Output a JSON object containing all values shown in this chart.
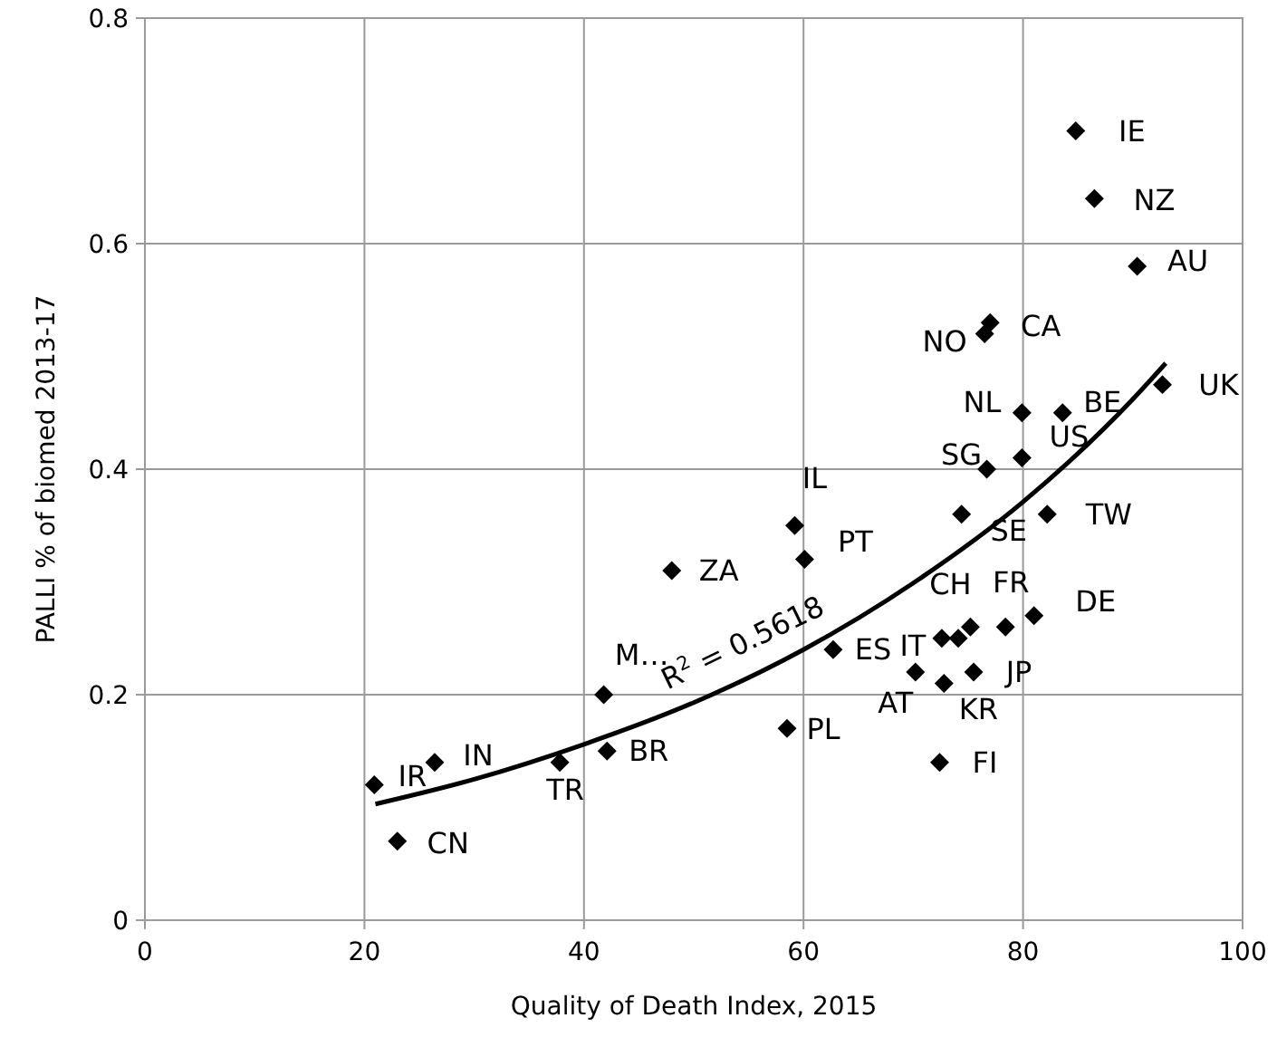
{
  "chart_data": {
    "type": "scatter",
    "xlabel": "Quality of Death Index, 2015",
    "ylabel": "PALLI % of biomed 2013-17",
    "xlim": [
      0,
      100
    ],
    "xticks": [
      0,
      20,
      40,
      60,
      80,
      100
    ],
    "ylim": [
      0,
      0.8
    ],
    "yticks": [
      0,
      0.2,
      0.4,
      0.6,
      0.8
    ],
    "grid": true,
    "marker": "diamond",
    "series": [
      {
        "color": "#000000",
        "x": [
          84.8,
          86.5,
          90.4,
          77.0,
          76.5,
          79.9,
          83.6,
          79.9,
          76.7,
          92.7,
          74.4,
          82.2,
          59.2,
          60.1,
          48.0,
          75.2,
          78.4,
          81.0,
          72.6,
          74.1,
          62.7,
          70.2,
          72.8,
          75.5,
          72.4,
          58.5,
          41.8,
          42.1,
          37.8,
          26.4,
          20.9,
          23.0
        ],
        "values": [
          0.7,
          0.64,
          0.58,
          0.53,
          0.52,
          0.45,
          0.45,
          0.41,
          0.4,
          0.475,
          0.36,
          0.36,
          0.35,
          0.32,
          0.31,
          0.26,
          0.26,
          0.27,
          0.25,
          0.25,
          0.24,
          0.22,
          0.21,
          0.22,
          0.14,
          0.17,
          0.2,
          0.15,
          0.14,
          0.14,
          0.12,
          0.07
        ]
      },
      {
        "type": "line",
        "color": "#000000",
        "marker": "none",
        "x": [
          21,
          30,
          40,
          50,
          60,
          70,
          80,
          90,
          93
        ],
        "values": [
          0.103,
          0.125,
          0.156,
          0.193,
          0.24,
          0.299,
          0.371,
          0.462,
          0.494
        ]
      }
    ],
    "annotations": [
      {
        "text": "IE",
        "x": 84.8,
        "y": 0.7
      },
      {
        "text": "NZ",
        "x": 86.5,
        "y": 0.64
      },
      {
        "text": "AU",
        "x": 90.4,
        "y": 0.58
      },
      {
        "text": "CA",
        "x": 77.0,
        "y": 0.53
      },
      {
        "text": "NO",
        "x": 76.5,
        "y": 0.52
      },
      {
        "text": "NL",
        "x": 79.9,
        "y": 0.45
      },
      {
        "text": "BE",
        "x": 83.6,
        "y": 0.45
      },
      {
        "text": "US",
        "x": 79.9,
        "y": 0.41
      },
      {
        "text": "SG",
        "x": 76.7,
        "y": 0.4
      },
      {
        "text": "UK",
        "x": 92.7,
        "y": 0.475
      },
      {
        "text": "SE",
        "x": 74.4,
        "y": 0.36
      },
      {
        "text": "TW",
        "x": 82.2,
        "y": 0.36
      },
      {
        "text": "IL",
        "x": 59.2,
        "y": 0.35
      },
      {
        "text": "PT",
        "x": 60.1,
        "y": 0.32
      },
      {
        "text": "ZA",
        "x": 48.0,
        "y": 0.31
      },
      {
        "text": "CH",
        "x": 75.2,
        "y": 0.26
      },
      {
        "text": "FR",
        "x": 78.4,
        "y": 0.26
      },
      {
        "text": "DE",
        "x": 81.0,
        "y": 0.27
      },
      {
        "text": "IT",
        "x": 72.6,
        "y": 0.25
      },
      {
        "text": "ES",
        "x": 62.7,
        "y": 0.24
      },
      {
        "text": "AT",
        "x": 70.2,
        "y": 0.22
      },
      {
        "text": "KR",
        "x": 72.8,
        "y": 0.21
      },
      {
        "text": "JP",
        "x": 75.5,
        "y": 0.22
      },
      {
        "text": "FI",
        "x": 72.4,
        "y": 0.14
      },
      {
        "text": "PL",
        "x": 58.5,
        "y": 0.17
      },
      {
        "text": "M…",
        "x": 41.8,
        "y": 0.2
      },
      {
        "text": "BR",
        "x": 42.1,
        "y": 0.15
      },
      {
        "text": "TR",
        "x": 37.8,
        "y": 0.14
      },
      {
        "text": "IN",
        "x": 26.4,
        "y": 0.14
      },
      {
        "text": "IR",
        "x": 20.9,
        "y": 0.12
      },
      {
        "text": "CN",
        "x": 23.0,
        "y": 0.07
      },
      "R$^{2}$ = 0.5618"
    ]
  }
}
